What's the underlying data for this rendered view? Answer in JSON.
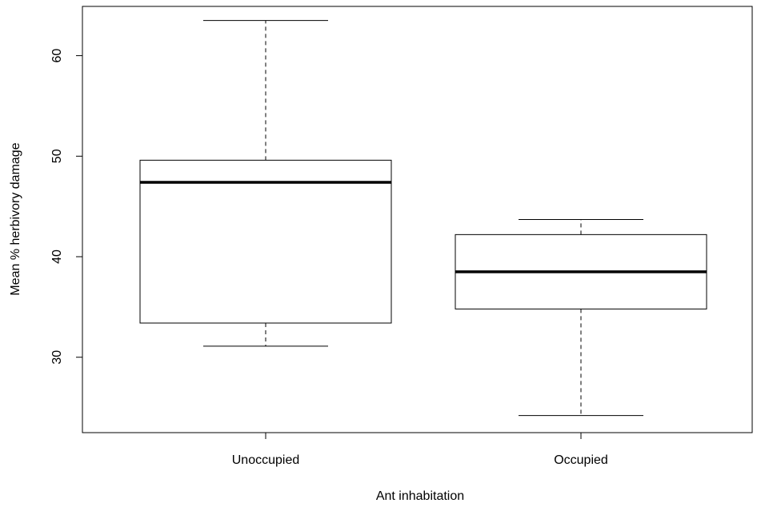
{
  "chart_data": {
    "type": "box",
    "x_label": "Ant inhabitation",
    "y_label": "Mean % herbivory damage",
    "categories": [
      "Unoccupied",
      "Occupied"
    ],
    "boxes": [
      {
        "min": 31.1,
        "q1": 33.4,
        "median": 47.4,
        "q3": 49.6,
        "max": 63.5
      },
      {
        "min": 24.2,
        "q1": 34.8,
        "median": 38.5,
        "q3": 42.2,
        "max": 43.7
      }
    ],
    "ylim": [
      22.5,
      64.9
    ],
    "yticks": [
      30,
      40,
      50,
      60
    ]
  }
}
